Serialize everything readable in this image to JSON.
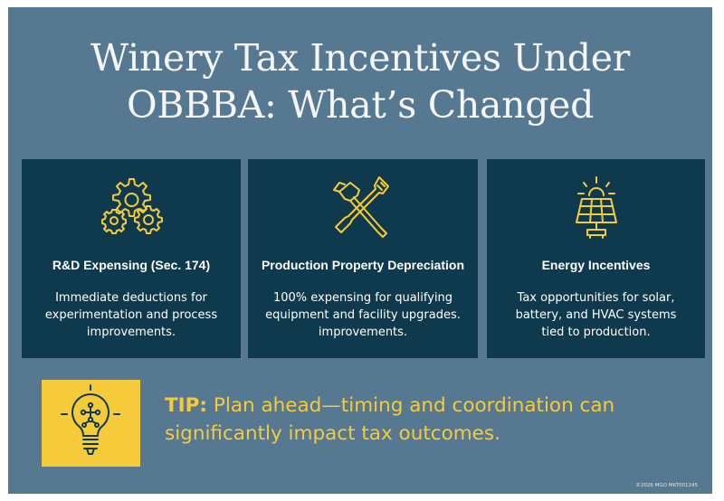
{
  "title": {
    "line1": "Winery Tax Incentives Under",
    "line2": "OBBBA: What’s Changed"
  },
  "cards": [
    {
      "icon": "gears-icon",
      "heading": "R&D Expensing (Sec. 174)",
      "lines": [
        "Immediate deductions for",
        "experimentation and process",
        "improvements."
      ]
    },
    {
      "icon": "hammer-wrench-icon",
      "heading": "Production Property Depreciation",
      "lines": [
        "100% expensing for qualifying",
        "equipment and facility upgrades.",
        "improvements."
      ]
    },
    {
      "icon": "solar-panel-icon",
      "heading": "Energy Incentives",
      "lines": [
        "Tax opportunities for solar,",
        "battery, and HVAC systems",
        "tied to production."
      ]
    }
  ],
  "tip": {
    "icon": "lightbulb-icon",
    "label": "TIP:",
    "line1": "Plan ahead—timing and coordination can",
    "line2": "significantly impact tax outcomes."
  },
  "footer": "©2026 MGO  MKT001245",
  "colors": {
    "background": "#577891",
    "card": "#0f3a4d",
    "accent": "#f5cb3c",
    "text": "#ffffff"
  }
}
